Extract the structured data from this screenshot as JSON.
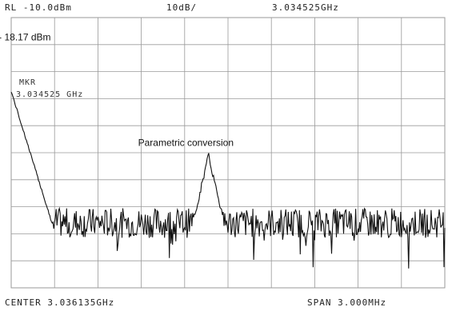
{
  "header": {
    "ref_level": "RL -10.0dBm",
    "scale": "10dB/",
    "marker_freq": "3.034525GHz"
  },
  "footer": {
    "center": "CENTER 3.036135GHz",
    "span": "SPAN 3.000MHz"
  },
  "marker_readout": {
    "label": "MKR",
    "value": "3.034525 GHz"
  },
  "chart_data": {
    "type": "line",
    "title": "",
    "xlabel": "",
    "ylabel": "",
    "grid": true,
    "x_unit": "GHz",
    "y_unit": "dBm",
    "xlim": [
      3.034635,
      3.037635
    ],
    "ylim": [
      -110,
      -10
    ],
    "x_divisions": 10,
    "y_divisions": 10,
    "noise_floor_dBm": -86,
    "peaks": [
      {
        "freq_GHz": 3.034525,
        "level_dBm": -18.17,
        "label": "- 18.17 dBm"
      },
      {
        "freq_GHz": 3.036,
        "level_dBm": -61,
        "label": "Parametric conversion"
      }
    ],
    "annotations": [
      "- 18.17 dBm",
      "Parametric conversion"
    ]
  },
  "colors": {
    "grid": "#9a9a9a",
    "trace": "#111111",
    "background": "#ffffff"
  }
}
